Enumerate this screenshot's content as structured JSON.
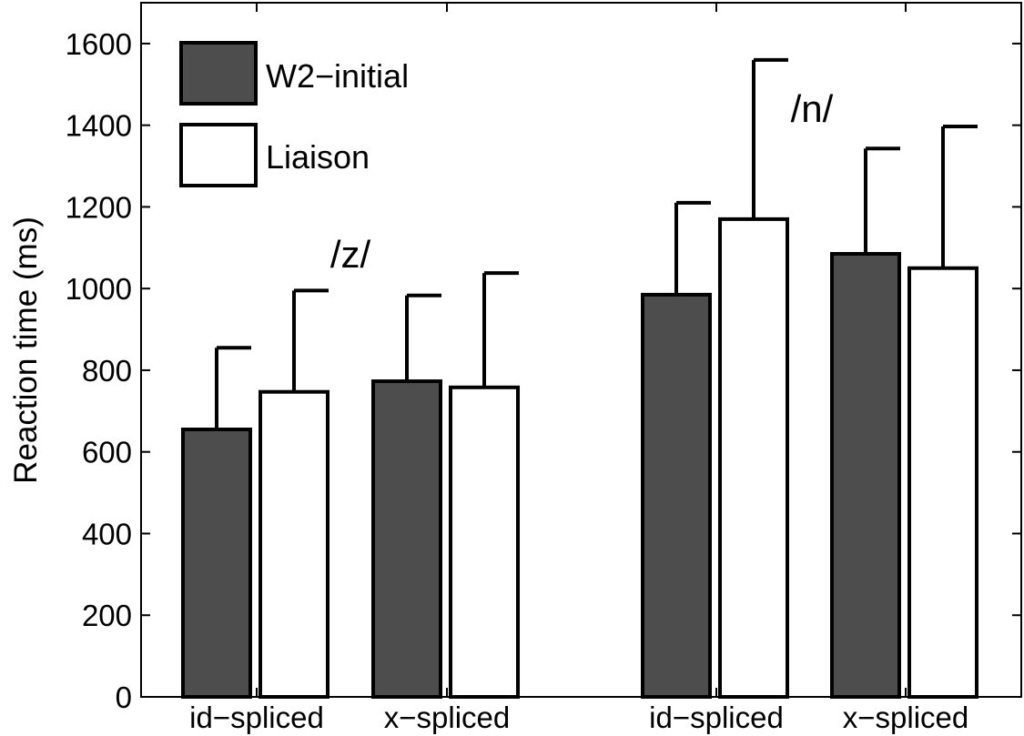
{
  "chart_data": {
    "type": "bar",
    "ylabel": "Reaction time (ms)",
    "ylim": [
      0,
      1700
    ],
    "yticks": [
      0,
      200,
      400,
      600,
      800,
      1000,
      1200,
      1400,
      1600
    ],
    "grid": false,
    "legend": {
      "placement": "top-left"
    },
    "categories": [
      "id−spliced",
      "x−spliced",
      "id−spliced",
      "x−spliced"
    ],
    "groups": [
      {
        "label": "/z/",
        "categories": [
          0,
          1
        ]
      },
      {
        "label": "/n/",
        "categories": [
          2,
          3
        ]
      }
    ],
    "series": [
      {
        "name": "W2−initial",
        "color": "#4d4d4d",
        "values": [
          655,
          773,
          985,
          1085
        ],
        "error": [
          200,
          210,
          225,
          258
        ]
      },
      {
        "name": "Liaison",
        "color": "#ffffff",
        "values": [
          747,
          758,
          1170,
          1050
        ],
        "error": [
          248,
          280,
          390,
          347
        ]
      }
    ]
  }
}
